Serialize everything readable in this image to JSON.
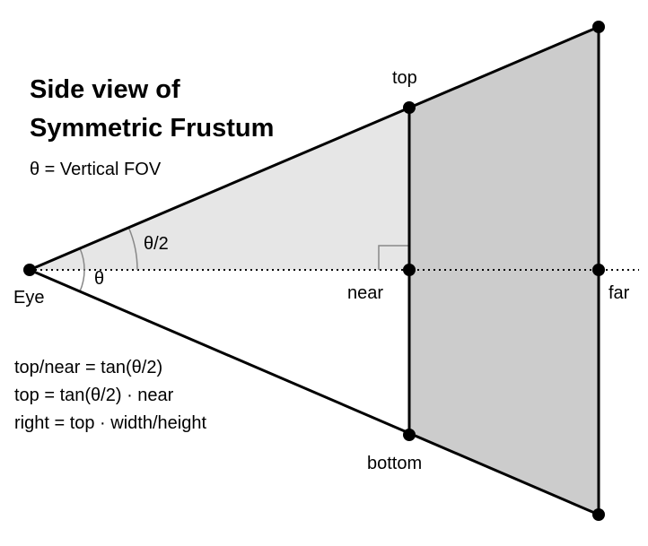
{
  "title_line1": "Side view of",
  "title_line2": "Symmetric Frustum",
  "fov_note": "θ = Vertical FOV",
  "labels": {
    "eye": "Eye",
    "top": "top",
    "bottom": "bottom",
    "near": "near",
    "far": "far",
    "theta": "θ",
    "half_theta": "θ/2"
  },
  "formulas": [
    "top/near = tan(θ/2)",
    "top = tan(θ/2) · near",
    "right = top · width/height"
  ],
  "colors": {
    "near_region_fill": "#e6e6e6",
    "frustum_fill": "#cccccc",
    "line": "#000000",
    "angle_arc": "#888888"
  }
}
